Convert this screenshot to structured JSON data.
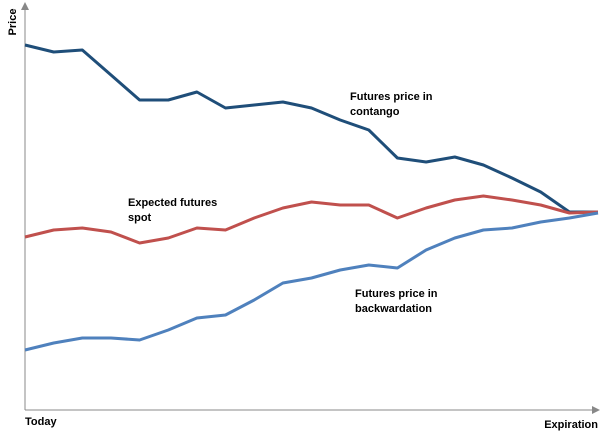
{
  "chart_data": {
    "type": "line",
    "y_label": "Price",
    "x_start_label": "Today",
    "x_end_label": "Expiration",
    "annotations": [
      [
        "Futures price in",
        "contango"
      ],
      [
        "Expected futures",
        "spot"
      ],
      [
        "Futures price in",
        "backwardation"
      ]
    ],
    "x": [
      0,
      5,
      10,
      15,
      20,
      25,
      30,
      35,
      40,
      45,
      50,
      55,
      60,
      65,
      70,
      75,
      80,
      85,
      90,
      95,
      100
    ],
    "xlim": [
      0,
      100
    ],
    "ylim": [
      0,
      100
    ],
    "series": [
      {
        "name": "Futures price in contango",
        "color": "#1f4e79",
        "values": [
          91.25,
          89.5,
          90,
          83.75,
          77.5,
          77.5,
          79.5,
          75.5,
          76.25,
          77,
          75.5,
          72.5,
          70,
          63,
          62,
          63.25,
          61.25,
          58,
          54.5,
          49.5,
          49.5
        ]
      },
      {
        "name": "Expected futures spot",
        "color": "#c0504d",
        "values": [
          43.25,
          45,
          45.5,
          44.5,
          41.75,
          43,
          45.5,
          45,
          48,
          50.5,
          52,
          51.25,
          51.25,
          48,
          50.5,
          52.5,
          53.5,
          52.5,
          51.25,
          49.25,
          49.5
        ]
      },
      {
        "name": "Futures price in backwardation",
        "color": "#4f81bd",
        "values": [
          15,
          16.75,
          18,
          18,
          17.5,
          20,
          23,
          23.75,
          27.5,
          31.75,
          33,
          35,
          36.25,
          35.5,
          40,
          43,
          45,
          45.5,
          47,
          48,
          49.25
        ]
      }
    ]
  }
}
